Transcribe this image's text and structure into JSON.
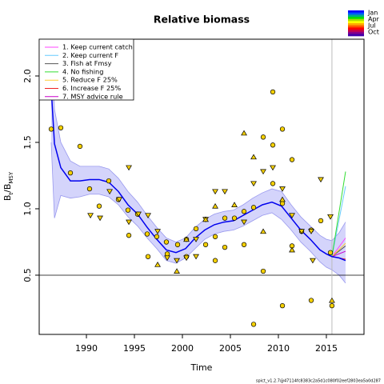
{
  "chart_data": {
    "type": "line",
    "title": "Relative biomass",
    "xlabel": "Time",
    "ylabel": [
      {
        "text": "B"
      },
      {
        "text": "t",
        "sub": true
      },
      {
        "text": "/B"
      },
      {
        "text": "MSY",
        "sub": true
      }
    ],
    "xlim": [
      1985.08,
      2018.92
    ],
    "ylim": [
      0.054,
      2.277
    ],
    "xticks": [
      1990,
      1995,
      2000,
      2005,
      2010,
      2015
    ],
    "yticks": [
      0.5,
      {
        "value": 1,
        "label": "1.0"
      },
      1.5,
      {
        "value": 2,
        "label": "2.0"
      }
    ],
    "hline": 0.5,
    "vline": 2015.58,
    "vline_color": "#bbbbbb",
    "median": {
      "color": "#0000ee",
      "ci_color": "#d4d4fb",
      "ci_edge": "#9999ee",
      "x": [
        1986.33,
        1986.67,
        1987.33,
        1988.33,
        1989.33,
        1990.33,
        1991.33,
        1992.33,
        1993.33,
        1994.33,
        1995.33,
        1996.33,
        1997.33,
        1998.33,
        1999.33,
        2000.33,
        2001.33,
        2002.33,
        2003.33,
        2004.33,
        2005.33,
        2006.33,
        2007.33,
        2008.33,
        2009.33,
        2010.33,
        2011.33,
        2012.33,
        2013.33,
        2014.33,
        2015,
        2015.58,
        2016.33,
        2017
      ],
      "values": [
        1.91,
        1.49,
        1.31,
        1.21,
        1.21,
        1.22,
        1.22,
        1.2,
        1.13,
        1.03,
        0.96,
        0.86,
        0.77,
        0.69,
        0.67,
        0.7,
        0.78,
        0.84,
        0.88,
        0.9,
        0.91,
        0.95,
        0.99,
        1.03,
        1.05,
        1.02,
        0.93,
        0.84,
        0.77,
        0.69,
        0.66,
        0.64,
        0.63,
        0.61
      ],
      "ci_lower": [
        1.5,
        0.93,
        1.1,
        1.08,
        1.09,
        1.11,
        1.11,
        1.09,
        1.03,
        0.94,
        0.87,
        0.78,
        0.7,
        0.61,
        0.59,
        0.63,
        0.7,
        0.77,
        0.81,
        0.83,
        0.84,
        0.87,
        0.91,
        0.95,
        0.97,
        0.92,
        0.84,
        0.75,
        0.68,
        0.6,
        0.56,
        0.54,
        0.5,
        0.44
      ],
      "ci_upper": [
        2.4,
        1.75,
        1.5,
        1.36,
        1.32,
        1.32,
        1.32,
        1.3,
        1.23,
        1.13,
        1.05,
        0.95,
        0.86,
        0.78,
        0.75,
        0.78,
        0.86,
        0.92,
        0.96,
        0.98,
        0.99,
        1.03,
        1.08,
        1.12,
        1.15,
        1.13,
        1.03,
        0.94,
        0.87,
        0.8,
        0.77,
        0.76,
        0.82,
        0.9
      ]
    },
    "points": [
      {
        "marker": "circle",
        "color": "#f5d000",
        "x": [
          1986.33,
          1987.33,
          1988.33,
          1989.33,
          1990.33,
          1991.33,
          1992.33,
          1993.33,
          1994.33,
          1995.33,
          1996.33,
          1997.33,
          1998.33,
          1999.5,
          2000.42,
          2001.42,
          2002.42,
          2003.42,
          2004.42,
          2005.42,
          2006.42,
          2007.42,
          2008.42,
          2009.42,
          2010.42,
          2011.42,
          2012.42,
          2013.42,
          2014.42,
          2015.42,
          2015.58,
          2007.42,
          2009.42,
          2008.42,
          2010.42,
          2011.42,
          2006.42,
          2004.42,
          2003.42,
          2000.42,
          1998.42,
          1996.42,
          1994.42,
          2013.42,
          2009.42,
          2010.42
        ],
        "values": [
          1.6,
          1.61,
          1.27,
          1.47,
          1.15,
          1.02,
          1.21,
          1.07,
          0.99,
          0.96,
          0.81,
          0.79,
          0.75,
          0.73,
          0.77,
          0.85,
          0.73,
          0.79,
          0.93,
          0.93,
          0.98,
          1.01,
          0.53,
          1.88,
          1.04,
          1.37,
          0.83,
          0.84,
          0.91,
          0.67,
          0.27,
          0.13,
          1.19,
          1.54,
          0.27,
          0.72,
          0.73,
          0.71,
          0.61,
          0.64,
          0.66,
          0.64,
          0.8,
          0.31,
          1.48,
          1.6
        ]
      },
      {
        "marker": "triangle-down",
        "color": "#f5d000",
        "x": [
          1990.42,
          1991.42,
          1992.42,
          1993.42,
          1994.42,
          1995.42,
          1996.42,
          1997.42,
          1998.42,
          1999.42,
          2000.42,
          2001.42,
          2002.42,
          2003.42,
          2004.42,
          2006.42,
          2007.42,
          2008.42,
          2009.42,
          2010.42,
          2011.42,
          2012.42,
          2013.42,
          2014.42,
          2015.42,
          1994.42,
          2001.42,
          2013.58
        ],
        "values": [
          0.95,
          0.93,
          1.13,
          1.07,
          0.9,
          0.96,
          0.95,
          0.83,
          0.63,
          0.61,
          0.63,
          0.77,
          0.92,
          1.13,
          1.13,
          0.9,
          1.19,
          1.28,
          1.31,
          1.15,
          0.95,
          0.83,
          0.83,
          1.22,
          0.94,
          1.31,
          0.64,
          0.61
        ]
      },
      {
        "marker": "triangle-up",
        "color": "#f5d000",
        "x": [
          1999.42,
          2003.42,
          2005.42,
          2006.42,
          2007.42,
          2008.42,
          2010.42,
          2011.42,
          2015.58,
          2002.42,
          1997.42,
          2000.42
        ],
        "values": [
          0.53,
          1.02,
          1.03,
          1.57,
          1.39,
          0.83,
          1.07,
          0.69,
          0.31,
          0.92,
          0.58,
          0.77
        ]
      }
    ],
    "series": [
      {
        "name": "1. Keep current catch",
        "color": "#ff44ff",
        "x": [
          2015.58,
          2017
        ],
        "values": [
          0.64,
          0.78
        ]
      },
      {
        "name": "2. Keep current F",
        "color": "#66ccff",
        "x": [
          2015.58,
          2017
        ],
        "values": [
          0.64,
          1.17
        ]
      },
      {
        "name": "3. Fish at Fmsy",
        "color": "#555555",
        "x": [
          2015.58,
          2017
        ],
        "values": [
          0.64,
          0.72
        ]
      },
      {
        "name": "4. No fishing",
        "color": "#33dd33",
        "x": [
          2015.58,
          2017
        ],
        "values": [
          0.64,
          1.28
        ]
      },
      {
        "name": "5. Reduce F 25%",
        "color": "#ffcc33",
        "x": [
          2015.58,
          2017
        ],
        "values": [
          0.64,
          0.74
        ]
      },
      {
        "name": "6. Increase F 25%",
        "color": "#ee2222",
        "x": [
          2015.58,
          2017
        ],
        "values": [
          0.64,
          0.62
        ]
      },
      {
        "name": "7. MSY advice rule",
        "color": "#cc00cc",
        "x": [
          2015.58,
          2017
        ],
        "values": [
          0.64,
          0.68
        ]
      }
    ],
    "legend": "top-left",
    "colorbar": {
      "colors": [
        "#0000ff",
        "#0055ff",
        "#00aa88",
        "#00dd00",
        "#aadd00",
        "#ffff00",
        "#ffaa00",
        "#ff5500",
        "#ff0000",
        "#cc0044",
        "#880088",
        "#4400aa"
      ],
      "labels": [
        "Jan",
        "Apr",
        "Jul",
        "Oct"
      ]
    },
    "footnote": "spict_v1.2.7@47114fc8383c2a5d1c080f02eef2803ea5a0d287"
  }
}
